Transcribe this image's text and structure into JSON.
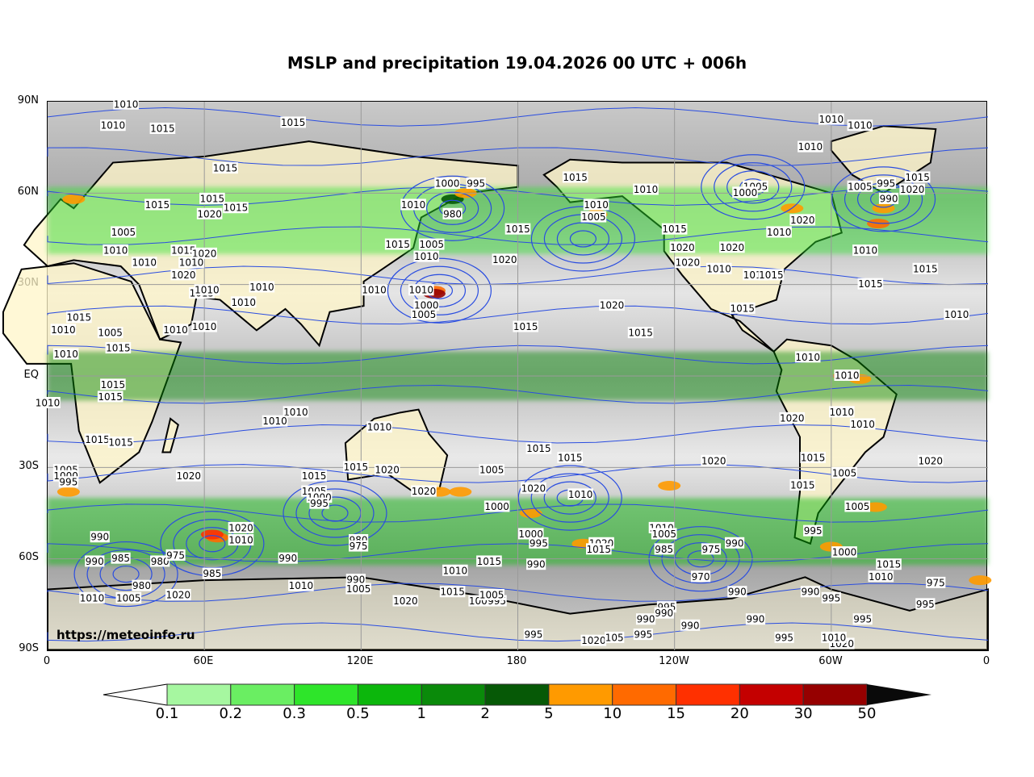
{
  "title": "MSLP and precipitation 19.04.2026 00 UTC + 006h",
  "source_credit": "https://meteoinfo.ru",
  "lat_labels": [
    "90N",
    "60N",
    "30N",
    "EQ",
    "30S",
    "60S",
    "90S"
  ],
  "lon_labels": [
    "0",
    "60E",
    "120E",
    "180",
    "120W",
    "60W",
    "0"
  ],
  "colorbar": {
    "labels": [
      "0.1",
      "0.2",
      "0.3",
      "0.5",
      "1",
      "2",
      "5",
      "10",
      "15",
      "20",
      "30",
      "50"
    ],
    "colors": [
      "#ffffff",
      "#a6f7a0",
      "#6aee62",
      "#2ee52a",
      "#0cb70c",
      "#0a8a0a",
      "#065906",
      "#ff9a00",
      "#ff6a00",
      "#ff3000",
      "#c40000",
      "#960000",
      "#0a0a0a"
    ]
  },
  "colors": {
    "isobar": "#2a4de0",
    "land_dry": "#fff6c8",
    "coast": "#000000",
    "grid": "#9a9a9a"
  },
  "isobar_labels": [
    {
      "text": "1010",
      "lon": 30,
      "lat": 89
    },
    {
      "text": "1010",
      "lon": 25,
      "lat": 82
    },
    {
      "text": "1015",
      "lon": 44,
      "lat": 81
    },
    {
      "text": "1015",
      "lon": 94,
      "lat": 83
    },
    {
      "text": "1015",
      "lon": 68,
      "lat": 68
    },
    {
      "text": "1015",
      "lon": 63,
      "lat": 58
    },
    {
      "text": "1015",
      "lon": 42,
      "lat": 56
    },
    {
      "text": "1020",
      "lon": 62,
      "lat": 53
    },
    {
      "text": "1015",
      "lon": 72,
      "lat": 55
    },
    {
      "text": "1005",
      "lon": 29,
      "lat": 47
    },
    {
      "text": "1010",
      "lon": 26,
      "lat": 41
    },
    {
      "text": "1010",
      "lon": 37,
      "lat": 37
    },
    {
      "text": "1015",
      "lon": 52,
      "lat": 41
    },
    {
      "text": "1020",
      "lon": 60,
      "lat": 40
    },
    {
      "text": "1010",
      "lon": 55,
      "lat": 37
    },
    {
      "text": "1020",
      "lon": 52,
      "lat": 33
    },
    {
      "text": "1015",
      "lon": 59,
      "lat": 27
    },
    {
      "text": "1010",
      "lon": 61,
      "lat": 28
    },
    {
      "text": "1015",
      "lon": 12,
      "lat": 19
    },
    {
      "text": "1010",
      "lon": 6,
      "lat": 15
    },
    {
      "text": "1005",
      "lon": 24,
      "lat": 14
    },
    {
      "text": "1015",
      "lon": 27,
      "lat": 9
    },
    {
      "text": "1010",
      "lon": 7,
      "lat": 7
    },
    {
      "text": "1010",
      "lon": 0,
      "lat": -9
    },
    {
      "text": "1015",
      "lon": 25,
      "lat": -3
    },
    {
      "text": "1015",
      "lon": 24,
      "lat": -7
    },
    {
      "text": "1015",
      "lon": 19,
      "lat": -21
    },
    {
      "text": "1015",
      "lon": 28,
      "lat": -22
    },
    {
      "text": "1010",
      "lon": 49,
      "lat": 15
    },
    {
      "text": "1010",
      "lon": 60,
      "lat": 16
    },
    {
      "text": "1010",
      "lon": 75,
      "lat": 24
    },
    {
      "text": "1010",
      "lon": 82,
      "lat": 29
    },
    {
      "text": "1010",
      "lon": 95,
      "lat": -12
    },
    {
      "text": "1010",
      "lon": 87,
      "lat": -15
    },
    {
      "text": "1010",
      "lon": 127,
      "lat": -17
    },
    {
      "text": "1000",
      "lon": 153,
      "lat": 63
    },
    {
      "text": "995",
      "lon": 164,
      "lat": 63
    },
    {
      "text": "980",
      "lon": 155,
      "lat": 53
    },
    {
      "text": "1010",
      "lon": 140,
      "lat": 56
    },
    {
      "text": "1005",
      "lon": 147,
      "lat": 43
    },
    {
      "text": "1010",
      "lon": 145,
      "lat": 39
    },
    {
      "text": "1015",
      "lon": 134,
      "lat": 43
    },
    {
      "text": "1010",
      "lon": 143,
      "lat": 28
    },
    {
      "text": "1000",
      "lon": 145,
      "lat": 23
    },
    {
      "text": "1005",
      "lon": 144,
      "lat": 20
    },
    {
      "text": "1010",
      "lon": 125,
      "lat": 28
    },
    {
      "text": "1015",
      "lon": 180,
      "lat": 48
    },
    {
      "text": "1020",
      "lon": 175,
      "lat": 38
    },
    {
      "text": "1020",
      "lon": 216,
      "lat": 23
    },
    {
      "text": "1015",
      "lon": 183,
      "lat": 16
    },
    {
      "text": "1015",
      "lon": 227,
      "lat": 14
    },
    {
      "text": "1015",
      "lon": 202,
      "lat": 65
    },
    {
      "text": "1010",
      "lon": 229,
      "lat": 61
    },
    {
      "text": "1010",
      "lon": 210,
      "lat": 56
    },
    {
      "text": "1005",
      "lon": 209,
      "lat": 52
    },
    {
      "text": "1015",
      "lon": 240,
      "lat": 48
    },
    {
      "text": "1020",
      "lon": 243,
      "lat": 42
    },
    {
      "text": "1020",
      "lon": 262,
      "lat": 42
    },
    {
      "text": "1020",
      "lon": 245,
      "lat": 37
    },
    {
      "text": "1010",
      "lon": 257,
      "lat": 35
    },
    {
      "text": "1015",
      "lon": 266,
      "lat": 22
    },
    {
      "text": "1010",
      "lon": 280,
      "lat": 47
    },
    {
      "text": "1010",
      "lon": 271,
      "lat": 33
    },
    {
      "text": "1015",
      "lon": 277,
      "lat": 33
    },
    {
      "text": "1020",
      "lon": 289,
      "lat": 51
    },
    {
      "text": "1005",
      "lon": 271,
      "lat": 62
    },
    {
      "text": "1000",
      "lon": 267,
      "lat": 60
    },
    {
      "text": "1005",
      "lon": 311,
      "lat": 62
    },
    {
      "text": "995",
      "lon": 321,
      "lat": 63
    },
    {
      "text": "990",
      "lon": 322,
      "lat": 58
    },
    {
      "text": "1010",
      "lon": 313,
      "lat": 41
    },
    {
      "text": "1015",
      "lon": 333,
      "lat": 65
    },
    {
      "text": "1020",
      "lon": 331,
      "lat": 61
    },
    {
      "text": "1010",
      "lon": 300,
      "lat": 84
    },
    {
      "text": "1010",
      "lon": 311,
      "lat": 82
    },
    {
      "text": "1010",
      "lon": 292,
      "lat": 75
    },
    {
      "text": "1015",
      "lon": 315,
      "lat": 30
    },
    {
      "text": "1015",
      "lon": 336,
      "lat": 35
    },
    {
      "text": "1010",
      "lon": 348,
      "lat": 20
    },
    {
      "text": "1010",
      "lon": 291,
      "lat": 6
    },
    {
      "text": "1010",
      "lon": 306,
      "lat": 0
    },
    {
      "text": "1010",
      "lon": 304,
      "lat": -12
    },
    {
      "text": "1010",
      "lon": 312,
      "lat": -16
    },
    {
      "text": "1020",
      "lon": 285,
      "lat": -14
    },
    {
      "text": "1015",
      "lon": 293,
      "lat": -27
    },
    {
      "text": "1005",
      "lon": 305,
      "lat": -32
    },
    {
      "text": "1015",
      "lon": 289,
      "lat": -36
    },
    {
      "text": "1020",
      "lon": 338,
      "lat": -28
    },
    {
      "text": "1005",
      "lon": 310,
      "lat": -43
    },
    {
      "text": "995",
      "lon": 293,
      "lat": -51
    },
    {
      "text": "1000",
      "lon": 305,
      "lat": -58
    },
    {
      "text": "1015",
      "lon": 322,
      "lat": -62
    },
    {
      "text": "1010",
      "lon": 319,
      "lat": -66
    },
    {
      "text": "975",
      "lon": 340,
      "lat": -68
    },
    {
      "text": "995",
      "lon": 336,
      "lat": -75
    },
    {
      "text": "995",
      "lon": 312,
      "lat": -80
    },
    {
      "text": "1005",
      "lon": 7,
      "lat": -31
    },
    {
      "text": "1000",
      "lon": 7,
      "lat": -33
    },
    {
      "text": "995",
      "lon": 8,
      "lat": -35
    },
    {
      "text": "1020",
      "lon": 54,
      "lat": -33
    },
    {
      "text": "1015",
      "lon": 102,
      "lat": -33
    },
    {
      "text": "1005",
      "lon": 102,
      "lat": -38
    },
    {
      "text": "1000",
      "lon": 104,
      "lat": -40
    },
    {
      "text": "995",
      "lon": 104,
      "lat": -42
    },
    {
      "text": "1015",
      "lon": 118,
      "lat": -30
    },
    {
      "text": "1020",
      "lon": 130,
      "lat": -31
    },
    {
      "text": "1020",
      "lon": 144,
      "lat": -38
    },
    {
      "text": "1005",
      "lon": 170,
      "lat": -31
    },
    {
      "text": "1000",
      "lon": 172,
      "lat": -43
    },
    {
      "text": "1015",
      "lon": 188,
      "lat": -24
    },
    {
      "text": "1015",
      "lon": 200,
      "lat": -27
    },
    {
      "text": "1020",
      "lon": 186,
      "lat": -37
    },
    {
      "text": "1010",
      "lon": 204,
      "lat": -39
    },
    {
      "text": "1020",
      "lon": 255,
      "lat": -28
    },
    {
      "text": "1000",
      "lon": 185,
      "lat": -52
    },
    {
      "text": "995",
      "lon": 188,
      "lat": -55
    },
    {
      "text": "990",
      "lon": 187,
      "lat": -62
    },
    {
      "text": "1020",
      "lon": 212,
      "lat": -55
    },
    {
      "text": "1015",
      "lon": 211,
      "lat": -57
    },
    {
      "text": "1010",
      "lon": 235,
      "lat": -50
    },
    {
      "text": "1005",
      "lon": 236,
      "lat": -52
    },
    {
      "text": "985",
      "lon": 236,
      "lat": -57
    },
    {
      "text": "975",
      "lon": 254,
      "lat": -57
    },
    {
      "text": "990",
      "lon": 263,
      "lat": -55
    },
    {
      "text": "970",
      "lon": 250,
      "lat": -66
    },
    {
      "text": "990",
      "lon": 20,
      "lat": -53
    },
    {
      "text": "990",
      "lon": 18,
      "lat": -61
    },
    {
      "text": "985",
      "lon": 28,
      "lat": -60
    },
    {
      "text": "980",
      "lon": 43,
      "lat": -61
    },
    {
      "text": "975",
      "lon": 49,
      "lat": -59
    },
    {
      "text": "1020",
      "lon": 74,
      "lat": -50
    },
    {
      "text": "1010",
      "lon": 74,
      "lat": -54
    },
    {
      "text": "990",
      "lon": 92,
      "lat": -60
    },
    {
      "text": "980",
      "lon": 119,
      "lat": -54
    },
    {
      "text": "975",
      "lon": 119,
      "lat": -56
    },
    {
      "text": "1015",
      "lon": 169,
      "lat": -61
    },
    {
      "text": "1010",
      "lon": 156,
      "lat": -64
    },
    {
      "text": "985",
      "lon": 63,
      "lat": -65
    },
    {
      "text": "990",
      "lon": 118,
      "lat": -67
    },
    {
      "text": "1005",
      "lon": 119,
      "lat": -70
    },
    {
      "text": "1010",
      "lon": 97,
      "lat": -69
    },
    {
      "text": "980",
      "lon": 36,
      "lat": -69
    },
    {
      "text": "1005",
      "lon": 31,
      "lat": -73
    },
    {
      "text": "1010",
      "lon": 17,
      "lat": -73
    },
    {
      "text": "1020",
      "lon": 50,
      "lat": -72
    },
    {
      "text": "1020",
      "lon": 137,
      "lat": -74
    },
    {
      "text": "1015",
      "lon": 155,
      "lat": -71
    },
    {
      "text": "1005",
      "lon": 166,
      "lat": -74
    },
    {
      "text": "995",
      "lon": 172,
      "lat": -74
    },
    {
      "text": "1005",
      "lon": 170,
      "lat": -72
    },
    {
      "text": "990",
      "lon": 264,
      "lat": -71
    },
    {
      "text": "995",
      "lon": 237,
      "lat": -76
    },
    {
      "text": "990",
      "lon": 236,
      "lat": -78
    },
    {
      "text": "990",
      "lon": 229,
      "lat": -80
    },
    {
      "text": "990",
      "lon": 246,
      "lat": -82
    },
    {
      "text": "990",
      "lon": 271,
      "lat": -80
    },
    {
      "text": "990",
      "lon": 292,
      "lat": -71
    },
    {
      "text": "995",
      "lon": 300,
      "lat": -73
    },
    {
      "text": "995",
      "lon": 186,
      "lat": -85
    },
    {
      "text": "995",
      "lon": 228,
      "lat": -85
    },
    {
      "text": "1020",
      "lon": 209,
      "lat": -87
    },
    {
      "text": "105",
      "lon": 217,
      "lat": -86
    },
    {
      "text": "995",
      "lon": 282,
      "lat": -86
    },
    {
      "text": "1020",
      "lon": 304,
      "lat": -88
    },
    {
      "text": "1010",
      "lon": 301,
      "lat": -86
    }
  ],
  "precip_cells": [
    {
      "lon": 155,
      "lat": 58,
      "class": 6
    },
    {
      "lon": 160,
      "lat": 60,
      "class": 7
    },
    {
      "lon": 148,
      "lat": 28,
      "class": 8
    },
    {
      "lon": 148,
      "lat": 27,
      "class": 11
    },
    {
      "lon": 65,
      "lat": -53,
      "class": 8
    },
    {
      "lon": 63,
      "lat": -52,
      "class": 9
    },
    {
      "lon": 317,
      "lat": -43,
      "class": 7
    },
    {
      "lon": 320,
      "lat": 55,
      "class": 7
    },
    {
      "lon": 318,
      "lat": 50,
      "class": 8
    },
    {
      "lon": 305,
      "lat": 0,
      "class": 8
    },
    {
      "lon": 311,
      "lat": -1,
      "class": 7
    },
    {
      "lon": 210,
      "lat": 53,
      "class": 7
    },
    {
      "lon": 185,
      "lat": -45,
      "class": 7
    },
    {
      "lon": 205,
      "lat": -55,
      "class": 7
    },
    {
      "lon": 8,
      "lat": -38,
      "class": 7
    },
    {
      "lon": 285,
      "lat": 55,
      "class": 7
    },
    {
      "lon": 10,
      "lat": 58,
      "class": 7
    },
    {
      "lon": 357,
      "lat": -67,
      "class": 7
    },
    {
      "lon": 300,
      "lat": -56,
      "class": 7
    },
    {
      "lon": 158,
      "lat": -38,
      "class": 7
    },
    {
      "lon": 238,
      "lat": -36,
      "class": 7
    },
    {
      "lon": 150,
      "lat": -38,
      "class": 7
    }
  ]
}
